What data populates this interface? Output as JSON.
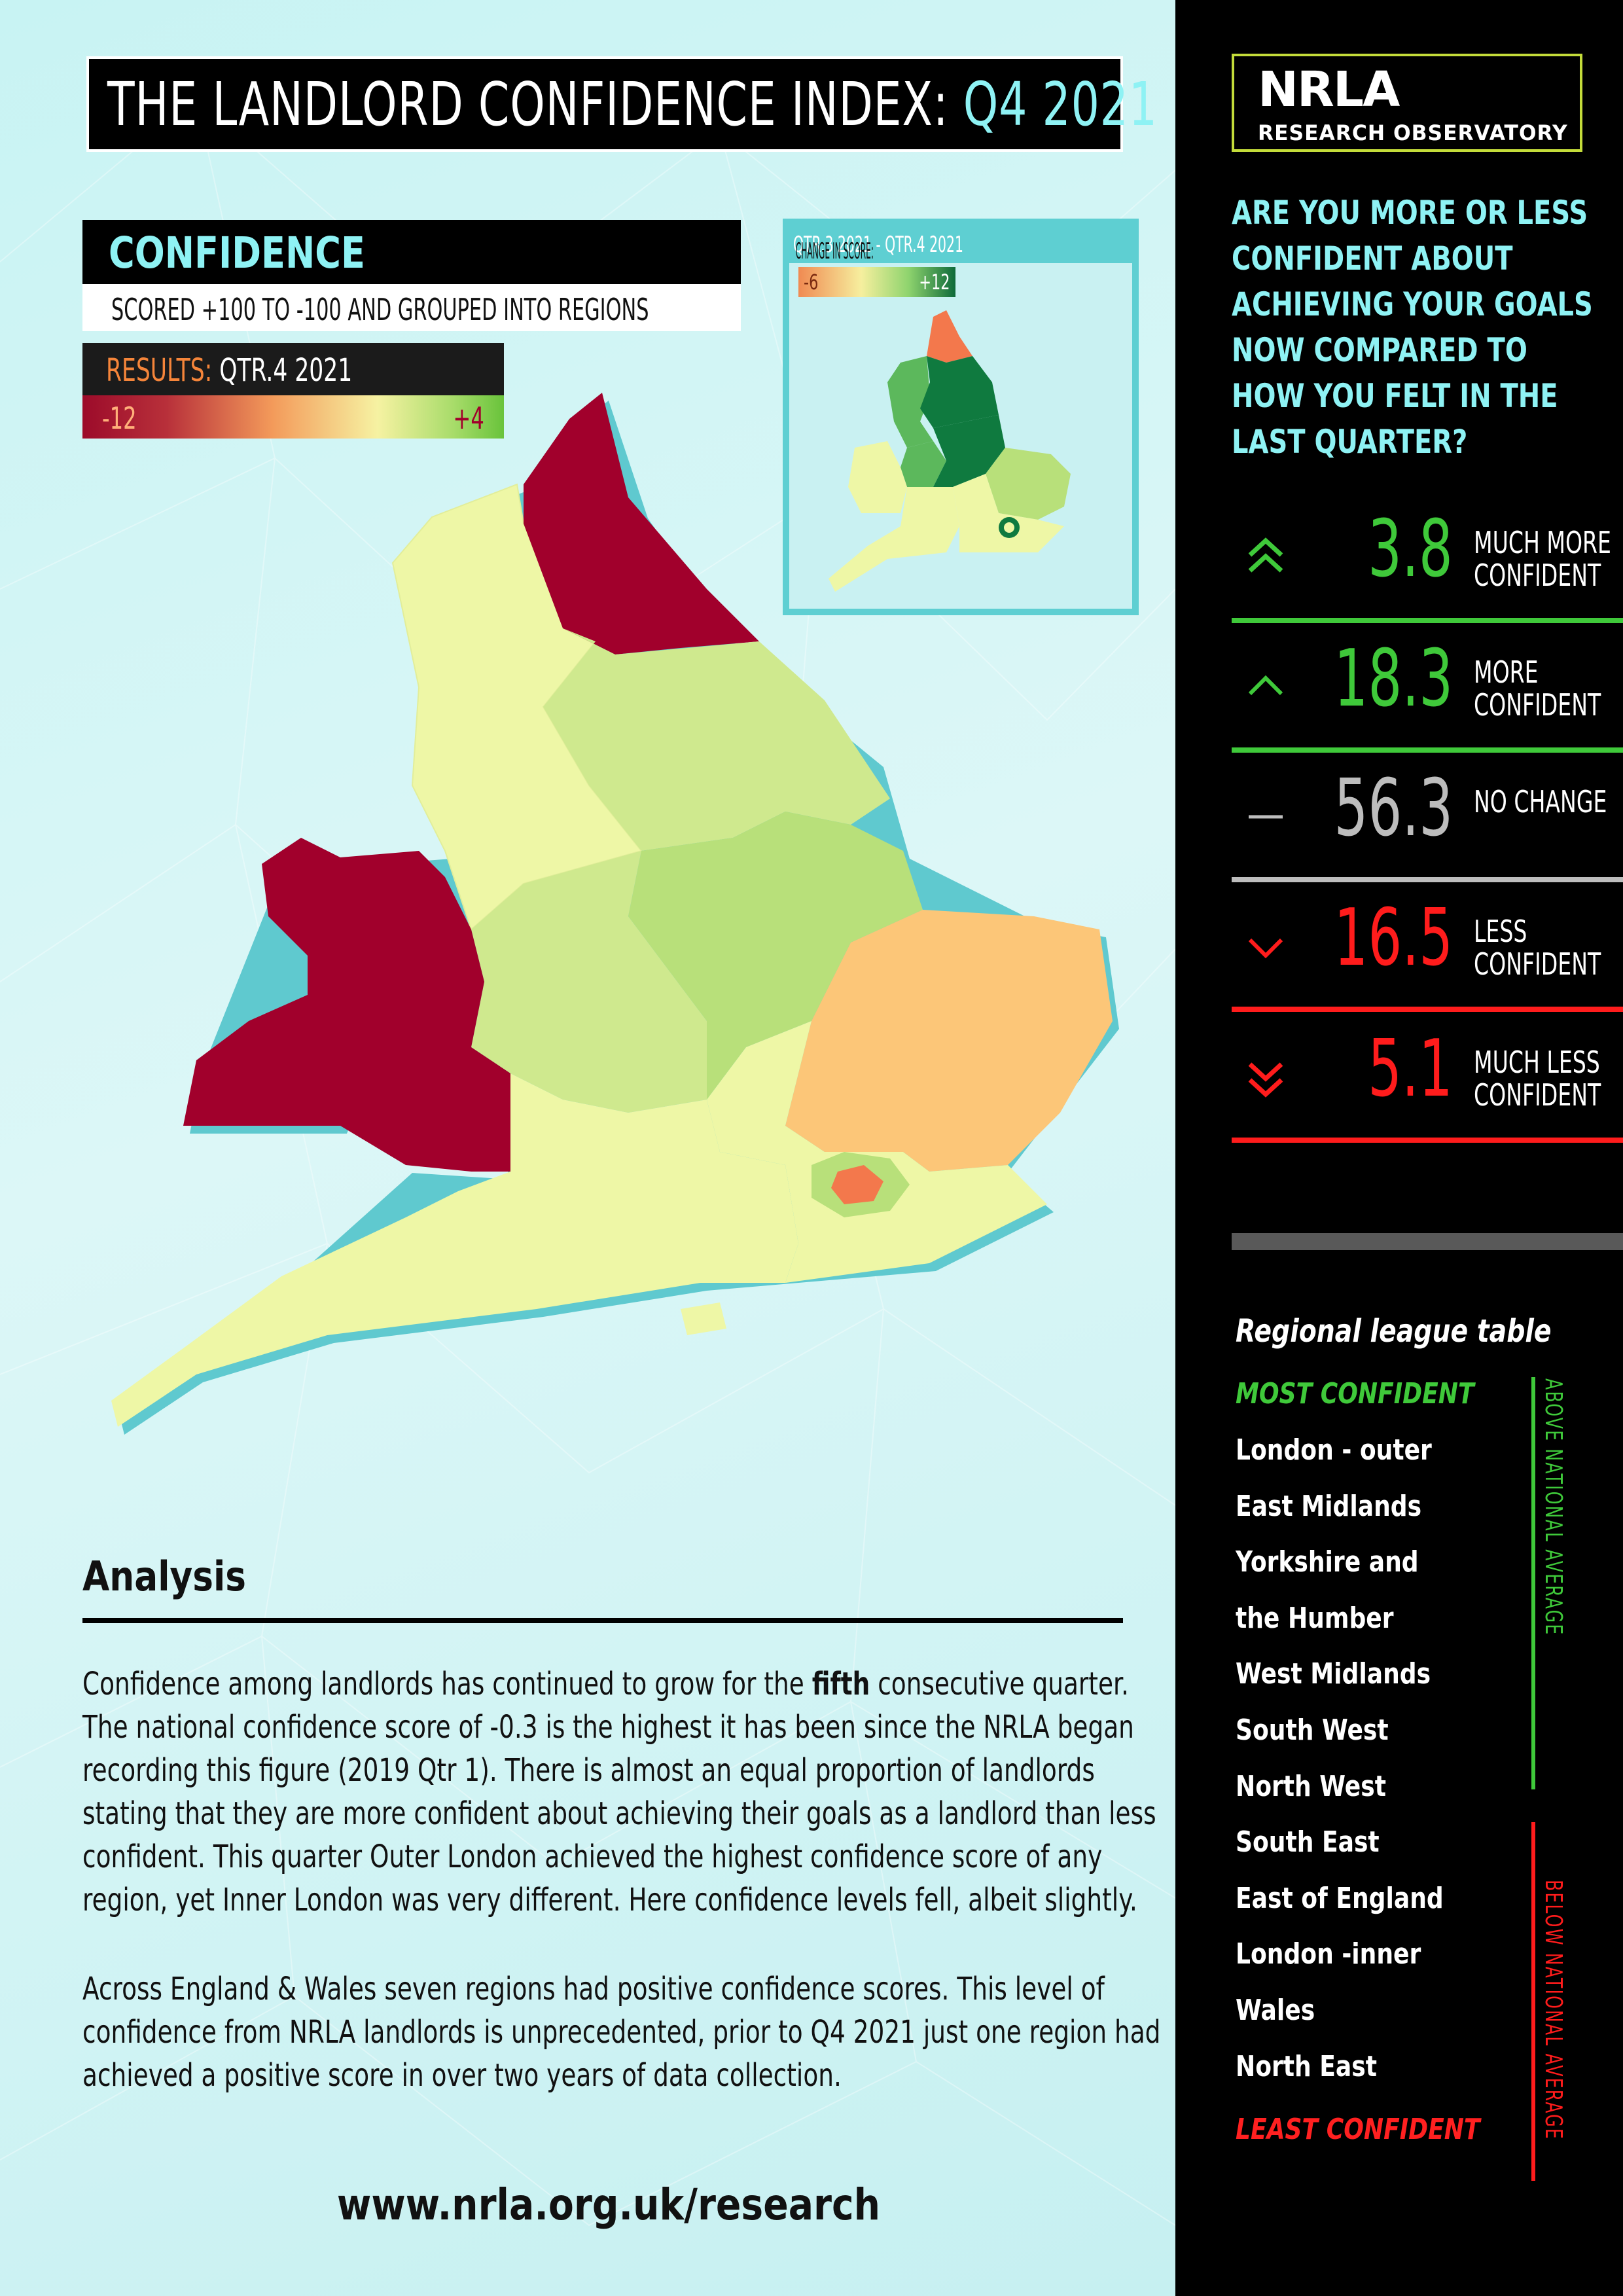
{
  "title": {
    "main": "THE LANDLORD CONFIDENCE INDEX:",
    "highlight": "Q4 2021"
  },
  "confidence": {
    "heading": "CONFIDENCE",
    "subheading": "SCORED +100 TO -100 AND GROUPED INTO REGIONS"
  },
  "results": {
    "label": "RESULTS:",
    "period": "QTR.4 2021",
    "scale_min": "-12",
    "scale_max": "+4"
  },
  "change": {
    "label": "CHANGE IN SCORE:",
    "period": "QTR.3 2021 - QTR.4 2021",
    "scale_min": "-6",
    "scale_max": "+12"
  },
  "colors": {
    "dark_red": "#a1002c",
    "orange": "#fcc678",
    "salmon": "#f3784c",
    "pale_yellow": "#eef7a6",
    "light_green": "#b8e07a",
    "mid_green": "#5cb85c",
    "dark_green": "#0f7a3f",
    "cyan": "#8ef2f4",
    "green_line": "#3fc93a",
    "red_line": "#ff1c1c",
    "grey_line": "#bdbdbd"
  },
  "analysis": {
    "title": "Analysis",
    "p1_before": "Confidence among landlords has continued to grow for the ",
    "p1_bold": "fifth",
    "p1_after": " consecutive quarter. The national confidence score of -0.3 is the highest it has been since the NRLA began recording this figure (2019 Qtr 1). There is almost an equal proportion of landlords stating that they are more confident about achieving their goals as a landlord than less confident. This quarter Outer London achieved the highest confidence score of any region, yet Inner London was very different. Here confidence levels fell, albeit slightly.",
    "p2": "Across England & Wales seven regions had positive confidence scores. This level of confidence from NRLA landlords is unprecedented, prior to Q4 2021 just one region had achieved a positive score in over two years of data collection."
  },
  "url": "www.nrla.org.uk/research",
  "logo": {
    "brand": "NRLA",
    "sub": "RESEARCH OBSERVATORY"
  },
  "question": "ARE YOU MORE OR LESS CONFIDENT ABOUT ACHIEVING YOUR GOALS NOW COMPARED TO HOW YOU FELT IN THE LAST QUARTER?",
  "responses": [
    {
      "value": "3.8",
      "label": "MUCH MORE CONFIDENT",
      "icon": "double-chevron-up-icon",
      "color": "#3fc93a"
    },
    {
      "value": "18.3",
      "label": "MORE CONFIDENT",
      "icon": "chevron-up-icon",
      "color": "#3fc93a"
    },
    {
      "value": "56.3",
      "label": "NO CHANGE",
      "icon": "dash-icon",
      "color": "#bdbdbd"
    },
    {
      "value": "16.5",
      "label": "LESS CONFIDENT",
      "icon": "chevron-down-icon",
      "color": "#ff1c1c"
    },
    {
      "value": "5.1",
      "label": "MUCH LESS CONFIDENT",
      "icon": "double-chevron-down-icon",
      "color": "#ff1c1c"
    }
  ],
  "league": {
    "title": "Regional league table",
    "most": "MOST CONFIDENT",
    "least": "LEAST CONFIDENT",
    "above": "ABOVE NATIONAL AVERAGE",
    "below": "BELOW NATIONAL AVERAGE",
    "items": [
      "London - outer",
      "East Midlands",
      "Yorkshire and",
      "the Humber",
      "West Midlands",
      " South West",
      "North West",
      "South East",
      "East of England",
      "London -inner",
      "Wales",
      "North East"
    ]
  }
}
